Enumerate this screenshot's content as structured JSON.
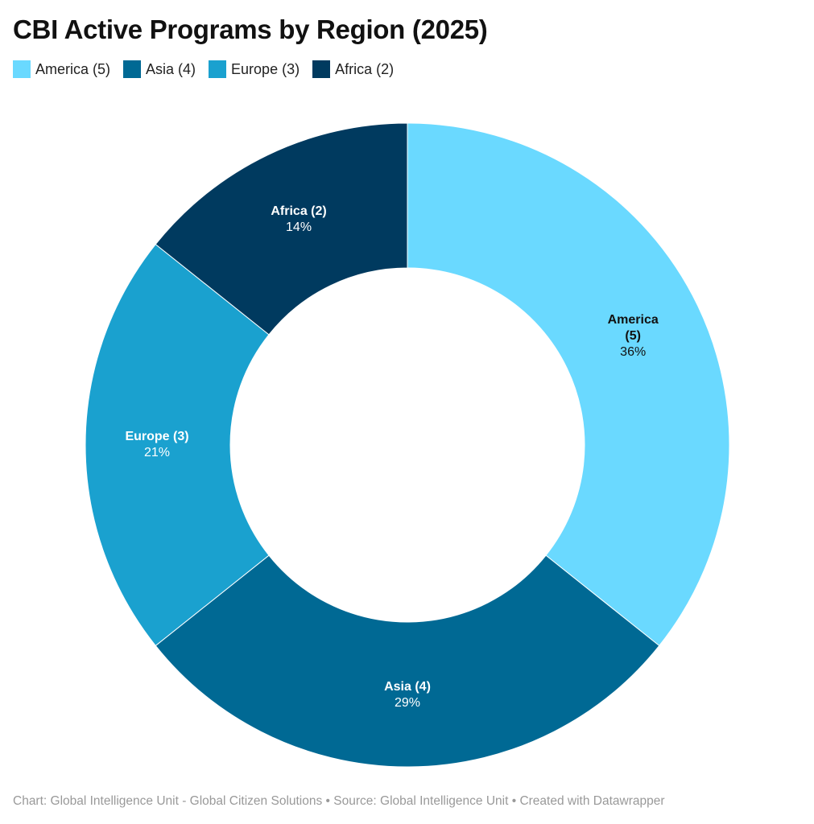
{
  "title": "CBI Active Programs by Region (2025)",
  "footer": "Chart: Global Intelligence Unit - Global Citizen Solutions  • Source: Global Intelligence Unit • Created with Datawrapper",
  "chart_data": {
    "type": "pie",
    "variant": "donut",
    "title": "CBI Active Programs by Region (2025)",
    "legend_position": "top-left",
    "categories": [
      "America (5)",
      "Asia (4)",
      "Europe (3)",
      "Africa (2)"
    ],
    "values": [
      5,
      4,
      3,
      2
    ],
    "percent_labels": [
      "36%",
      "29%",
      "21%",
      "14%"
    ],
    "colors": [
      "#6ad9ff",
      "#006994",
      "#1aa1cf",
      "#003a5f"
    ],
    "label_colors": [
      "#111111",
      "#ffffff",
      "#ffffff",
      "#ffffff"
    ]
  }
}
